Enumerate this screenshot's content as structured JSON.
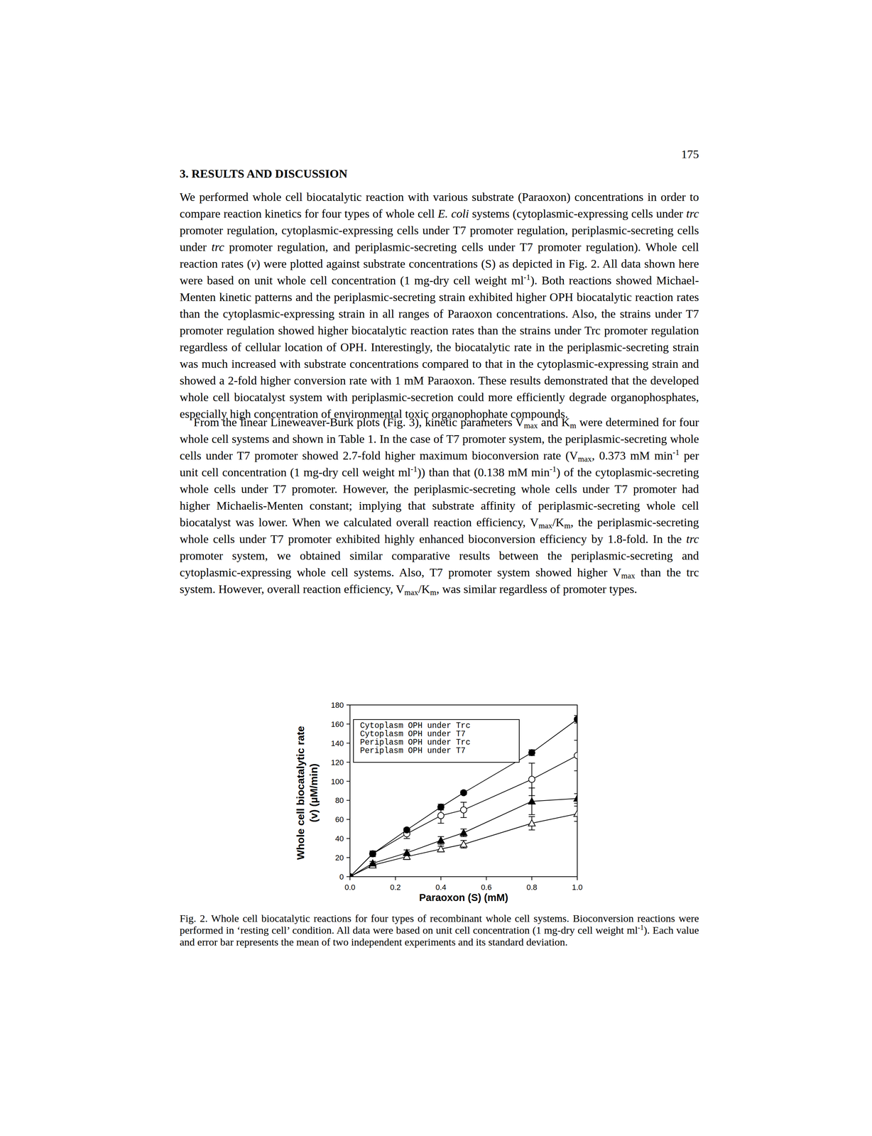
{
  "page": {
    "number": "175",
    "heading": "3. RESULTS AND DISCUSSION",
    "paragraphs": [
      [
        "We performed whole cell biocatalytic reaction with various substrate (Paraoxon) concentrations in order to compare reaction kinetics for four types of whole cell ",
        {
          "i": "E. coli"
        },
        " systems (cytoplasmic-expressing cells under ",
        {
          "i": "trc"
        },
        " promoter regulation, cytoplasmic-expressing cells under T7 promoter regulation, periplasmic-secreting cells under ",
        {
          "i": "trc"
        },
        " promoter regulation, and periplasmic-secreting cells under T7 promoter regulation). Whole cell reaction rates (",
        {
          "i": "v"
        },
        ") were plotted against substrate concentrations (S) as depicted in Fig. 2. All data shown here were based on unit whole cell concentration (1 mg-dry cell weight ml",
        {
          "sup": "-1"
        },
        "). Both reactions showed Michael-Menten kinetic patterns and the periplasmic-secreting strain exhibited higher OPH biocatalytic reaction rates than the cytoplasmic-expressing strain in all ranges of Paraoxon concentrations. Also, the strains under T7 promoter regulation showed higher biocatalytic reaction rates than the strains under Trc promoter regulation regardless of cellular location of OPH. Interestingly, the biocatalytic rate in the periplasmic-secreting strain was much increased with substrate concentrations compared to that in the cytoplasmic-expressing strain and showed a 2-fold higher conversion rate with 1 mM Paraoxon. These results demonstrated that the developed whole cell biocatalyst system with periplasmic-secretion could more efficiently degrade organophosphates, especially high concentration of environmental toxic organophophate compounds."
      ],
      [
        "From the linear Lineweaver-Burk plots (Fig. 3), kinetic parameters V",
        {
          "sub": "max"
        },
        " and K",
        {
          "sub": "m"
        },
        " were determined for four whole cell systems and shown in Table 1. In the case of T7 promoter system, the periplasmic-secreting whole cells under T7 promoter showed 2.7-fold higher maximum bioconversion rate (V",
        {
          "sub": "max"
        },
        ", 0.373 mM min",
        {
          "sup": "-1"
        },
        " per unit cell concentration (1 mg-dry cell weight ml",
        {
          "sup": "-1"
        },
        ")) than that (0.138 mM min",
        {
          "sup": "-1"
        },
        ") of the cytoplasmic-secreting whole cells under T7 promoter. However, the periplasmic-secreting whole cells under T7 promoter had higher Michaelis-Menten constant; implying that substrate affinity of periplasmic-secreting whole cell biocatalyst was lower. When we calculated overall reaction efficiency, V",
        {
          "sub": "max"
        },
        "/K",
        {
          "sub": "m"
        },
        ", the periplasmic-secreting whole cells under T7 promoter exhibited highly enhanced bioconversion efficiency by 1.8-fold. In the ",
        {
          "i": "trc"
        },
        " promoter system, we obtained similar comparative results between the periplasmic-secreting and cytoplasmic-expressing whole cell systems. Also, T7 promoter system showed higher V",
        {
          "sub": "max"
        },
        " than the trc system. However, overall reaction efficiency, V",
        {
          "sub": "max"
        },
        "/K",
        {
          "sub": "m"
        },
        ", was similar regardless of promoter types."
      ]
    ],
    "caption": [
      "Fig. 2. Whole cell biocatalytic reactions for four types of recombinant whole cell systems. Bioconversion reactions were performed in ‘resting cell’ condition. All data were based on unit cell concentration (1 mg-dry cell weight ml",
      {
        "sup": "-1"
      },
      "). Each value and error bar represents the mean of two independent experiments and its standard deviation."
    ]
  },
  "chart_data": {
    "type": "line",
    "xlabel": "Paraoxon (S) (mM)",
    "ylabel": [
      "Whole cell biocatalytic rate",
      "(v) (µM/min)"
    ],
    "x": [
      0,
      0.1,
      0.25,
      0.4,
      0.5,
      0.8,
      1.0
    ],
    "series": [
      {
        "name": "Cytoplasm OPH under Trc",
        "color": "#000000",
        "marker": "open-triangle",
        "values": [
          0,
          12,
          21,
          29,
          34,
          56,
          66
        ],
        "errors": [
          0,
          2,
          3,
          3,
          4,
          7,
          8
        ]
      },
      {
        "name": "Cytoplasm OPH under T7",
        "color": "#000000",
        "marker": "open-circle",
        "values": [
          0,
          24,
          45,
          64,
          70,
          102,
          127
        ],
        "errors": [
          0,
          3,
          5,
          8,
          8,
          17,
          16
        ]
      },
      {
        "name": "Periplasm OPH under Trc",
        "color": "#000000",
        "marker": "filled-triangle",
        "values": [
          0,
          14,
          25,
          38,
          46,
          79,
          82
        ],
        "errors": [
          0,
          2,
          3,
          4,
          4,
          14,
          5
        ]
      },
      {
        "name": "Periplasm OPH under T7",
        "color": "#000000",
        "marker": "filled-circle",
        "values": [
          0,
          24,
          49,
          73,
          88,
          130,
          165
        ],
        "errors": [
          0,
          2,
          2,
          3,
          2,
          3,
          4
        ]
      }
    ],
    "xlim": [
      0,
      1.0
    ],
    "xticks": [
      {
        "value": 0,
        "label": "0.0"
      },
      0.2,
      0.4,
      0.6,
      0.8,
      {
        "value": 1.0,
        "label": "1.0"
      }
    ],
    "ylim": [
      0,
      180
    ],
    "yticks": [
      0,
      20,
      40,
      60,
      80,
      100,
      120,
      140,
      160,
      180
    ],
    "legend": "top-left",
    "grid": false
  }
}
